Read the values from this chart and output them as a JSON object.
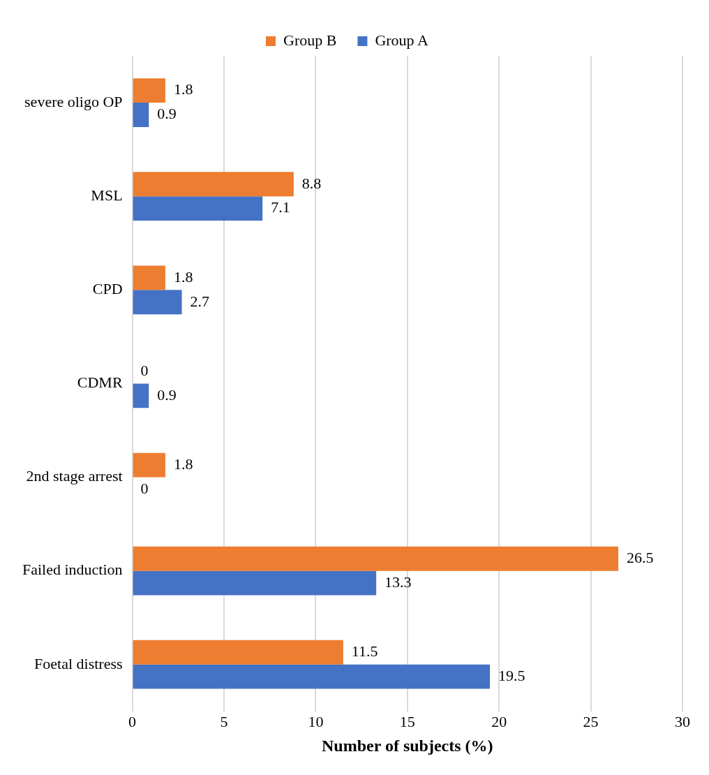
{
  "chart_data": {
    "type": "bar",
    "orientation": "horizontal",
    "xlabel": "Number of subjects (%)",
    "categories": [
      "severe oligo OP",
      "MSL",
      "CPD",
      "CDMR",
      "2nd stage arrest",
      "Failed induction",
      "Foetal distress"
    ],
    "series": [
      {
        "name": "Group B",
        "color": "#ed7d31",
        "values": [
          1.8,
          8.8,
          1.8,
          0,
          1.8,
          26.5,
          11.5
        ]
      },
      {
        "name": "Group A",
        "color": "#4472c4",
        "values": [
          0.9,
          7.1,
          2.7,
          0.9,
          0,
          13.3,
          19.5
        ]
      }
    ],
    "xlim": [
      0,
      30
    ],
    "xticks": [
      0,
      5,
      10,
      15,
      20,
      25,
      30
    ],
    "grid": "x",
    "legend": "top",
    "data_labels": true
  }
}
